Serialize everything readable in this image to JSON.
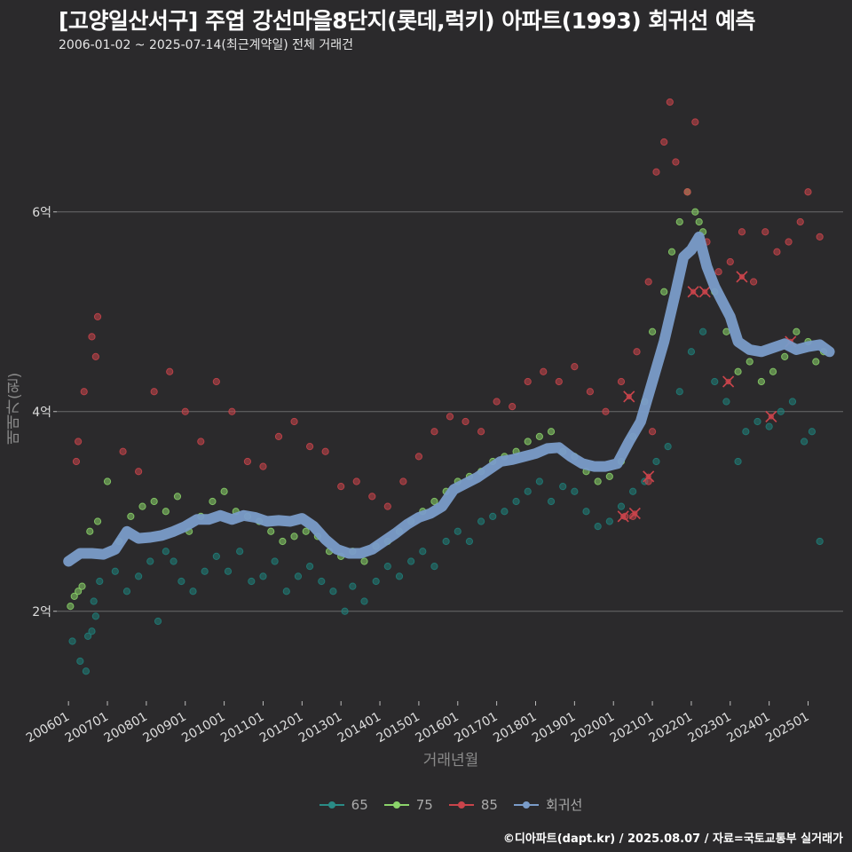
{
  "title": "[고양일산서구] 주엽 강선마을8단지(롯데,럭키) 아파트(1993) 회귀선 예측",
  "subtitle": "2006-01-02 ~ 2025-07-14(최근계약일) 전체 거래건",
  "credit": "©디아파트(dapt.kr) / 2025.08.07 / 자료=국토교통부 실거래가",
  "colors": {
    "background": "#2b2a2c",
    "grid": "#6b6b6b",
    "s65": "#1f7f7a",
    "s75": "#8bd36a",
    "s85": "#c9444b",
    "regression": "#7a9cc9"
  },
  "legend": [
    {
      "label": "65",
      "color": "#2a8b86"
    },
    {
      "label": "75",
      "color": "#8bd36a"
    },
    {
      "label": "85",
      "color": "#c9444b"
    },
    {
      "label": "회귀선",
      "color": "#7a9cc9"
    }
  ],
  "chart_data": {
    "type": "scatter",
    "xlabel": "거래년월",
    "ylabel": "매매가(원)",
    "x_unit": "year",
    "xlim": [
      2005.7,
      2025.9
    ],
    "ylim": [
      1.1,
      7.5
    ],
    "y_unit": "억",
    "yticks": [
      {
        "value": 2,
        "label": "2억"
      },
      {
        "value": 4,
        "label": "4억"
      },
      {
        "value": 6,
        "label": "6억"
      }
    ],
    "xticks": [
      {
        "value": 2006.0,
        "label": "200601"
      },
      {
        "value": 2007.0,
        "label": "200701"
      },
      {
        "value": 2008.0,
        "label": "200801"
      },
      {
        "value": 2009.0,
        "label": "200901"
      },
      {
        "value": 2010.0,
        "label": "201001"
      },
      {
        "value": 2011.0,
        "label": "201101"
      },
      {
        "value": 2012.0,
        "label": "201201"
      },
      {
        "value": 2013.0,
        "label": "201301"
      },
      {
        "value": 2014.0,
        "label": "201401"
      },
      {
        "value": 2015.0,
        "label": "201501"
      },
      {
        "value": 2016.0,
        "label": "201601"
      },
      {
        "value": 2017.0,
        "label": "201701"
      },
      {
        "value": 2018.0,
        "label": "201801"
      },
      {
        "value": 2019.0,
        "label": "201901"
      },
      {
        "value": 2020.0,
        "label": "202001"
      },
      {
        "value": 2021.0,
        "label": "202101"
      },
      {
        "value": 2022.0,
        "label": "202201"
      },
      {
        "value": 2023.0,
        "label": "202301"
      },
      {
        "value": 2024.0,
        "label": "202401"
      },
      {
        "value": 2025.0,
        "label": "202501"
      }
    ],
    "grid": true,
    "legend_position": "bottom",
    "series": [
      {
        "name": "65",
        "points": [
          [
            2006.1,
            1.7
          ],
          [
            2006.3,
            1.5
          ],
          [
            2006.45,
            1.4
          ],
          [
            2006.6,
            1.8
          ],
          [
            2006.7,
            1.95
          ],
          [
            2006.8,
            2.3
          ],
          [
            2006.5,
            1.75
          ],
          [
            2006.65,
            2.1
          ],
          [
            2007.2,
            2.4
          ],
          [
            2007.5,
            2.2
          ],
          [
            2007.8,
            2.35
          ],
          [
            2008.1,
            2.5
          ],
          [
            2008.3,
            1.9
          ],
          [
            2008.5,
            2.6
          ],
          [
            2008.7,
            2.5
          ],
          [
            2008.9,
            2.3
          ],
          [
            2009.2,
            2.2
          ],
          [
            2009.5,
            2.4
          ],
          [
            2009.8,
            2.55
          ],
          [
            2010.1,
            2.4
          ],
          [
            2010.4,
            2.6
          ],
          [
            2010.7,
            2.3
          ],
          [
            2011.0,
            2.35
          ],
          [
            2011.3,
            2.5
          ],
          [
            2011.6,
            2.2
          ],
          [
            2011.9,
            2.35
          ],
          [
            2012.2,
            2.45
          ],
          [
            2012.5,
            2.3
          ],
          [
            2012.8,
            2.2
          ],
          [
            2013.1,
            2.0
          ],
          [
            2013.3,
            2.25
          ],
          [
            2013.6,
            2.1
          ],
          [
            2013.9,
            2.3
          ],
          [
            2014.2,
            2.45
          ],
          [
            2014.5,
            2.35
          ],
          [
            2014.8,
            2.5
          ],
          [
            2015.1,
            2.6
          ],
          [
            2015.4,
            2.45
          ],
          [
            2015.7,
            2.7
          ],
          [
            2016.0,
            2.8
          ],
          [
            2016.3,
            2.7
          ],
          [
            2016.6,
            2.9
          ],
          [
            2016.9,
            2.95
          ],
          [
            2017.2,
            3.0
          ],
          [
            2017.5,
            3.1
          ],
          [
            2017.8,
            3.2
          ],
          [
            2018.1,
            3.3
          ],
          [
            2018.4,
            3.1
          ],
          [
            2018.7,
            3.25
          ],
          [
            2019.0,
            3.2
          ],
          [
            2019.3,
            3.0
          ],
          [
            2019.6,
            2.85
          ],
          [
            2019.9,
            2.9
          ],
          [
            2020.2,
            3.05
          ],
          [
            2020.5,
            3.2
          ],
          [
            2020.8,
            3.3
          ],
          [
            2021.1,
            3.5
          ],
          [
            2021.4,
            3.65
          ],
          [
            2021.7,
            4.2
          ],
          [
            2022.0,
            4.6
          ],
          [
            2022.3,
            4.8
          ],
          [
            2022.6,
            4.3
          ],
          [
            2022.9,
            4.1
          ],
          [
            2023.2,
            3.5
          ],
          [
            2023.4,
            3.8
          ],
          [
            2023.7,
            3.9
          ],
          [
            2024.0,
            3.85
          ],
          [
            2024.3,
            4.0
          ],
          [
            2024.6,
            4.1
          ],
          [
            2024.9,
            3.7
          ],
          [
            2025.1,
            3.8
          ],
          [
            2025.3,
            2.7
          ]
        ]
      },
      {
        "name": "75",
        "points": [
          [
            2006.05,
            2.05
          ],
          [
            2006.15,
            2.15
          ],
          [
            2006.25,
            2.2
          ],
          [
            2006.35,
            2.25
          ],
          [
            2006.55,
            2.8
          ],
          [
            2006.75,
            2.9
          ],
          [
            2007.0,
            3.3
          ],
          [
            2007.3,
            2.7
          ],
          [
            2007.6,
            2.95
          ],
          [
            2007.9,
            3.05
          ],
          [
            2008.2,
            3.1
          ],
          [
            2008.5,
            3.0
          ],
          [
            2008.8,
            3.15
          ],
          [
            2009.1,
            2.8
          ],
          [
            2009.4,
            2.95
          ],
          [
            2009.7,
            3.1
          ],
          [
            2010.0,
            3.2
          ],
          [
            2010.3,
            3.0
          ],
          [
            2010.6,
            2.95
          ],
          [
            2010.9,
            2.9
          ],
          [
            2011.2,
            2.8
          ],
          [
            2011.5,
            2.7
          ],
          [
            2011.8,
            2.75
          ],
          [
            2012.1,
            2.8
          ],
          [
            2012.4,
            2.75
          ],
          [
            2012.7,
            2.6
          ],
          [
            2013.0,
            2.55
          ],
          [
            2013.3,
            2.6
          ],
          [
            2013.6,
            2.5
          ],
          [
            2013.9,
            2.65
          ],
          [
            2014.2,
            2.7
          ],
          [
            2014.5,
            2.8
          ],
          [
            2014.8,
            2.9
          ],
          [
            2015.1,
            3.0
          ],
          [
            2015.4,
            3.1
          ],
          [
            2015.7,
            3.2
          ],
          [
            2016.0,
            3.3
          ],
          [
            2016.3,
            3.35
          ],
          [
            2016.6,
            3.4
          ],
          [
            2016.9,
            3.5
          ],
          [
            2017.2,
            3.55
          ],
          [
            2017.5,
            3.6
          ],
          [
            2017.8,
            3.7
          ],
          [
            2018.1,
            3.75
          ],
          [
            2018.4,
            3.8
          ],
          [
            2018.7,
            3.6
          ],
          [
            2019.0,
            3.55
          ],
          [
            2019.3,
            3.4
          ],
          [
            2019.6,
            3.3
          ],
          [
            2019.9,
            3.35
          ],
          [
            2020.2,
            3.5
          ],
          [
            2020.5,
            3.75
          ],
          [
            2020.8,
            4.1
          ],
          [
            2021.0,
            4.8
          ],
          [
            2021.3,
            5.2
          ],
          [
            2021.5,
            5.6
          ],
          [
            2021.7,
            5.9
          ],
          [
            2021.9,
            6.2
          ],
          [
            2022.1,
            6.0
          ],
          [
            2022.2,
            5.9
          ],
          [
            2022.3,
            5.8
          ],
          [
            2022.6,
            5.2
          ],
          [
            2022.9,
            4.8
          ],
          [
            2023.2,
            4.4
          ],
          [
            2023.5,
            4.5
          ],
          [
            2023.8,
            4.3
          ],
          [
            2024.1,
            4.4
          ],
          [
            2024.4,
            4.55
          ],
          [
            2024.7,
            4.8
          ],
          [
            2025.0,
            4.7
          ],
          [
            2025.2,
            4.5
          ],
          [
            2025.4,
            4.6
          ]
        ]
      },
      {
        "name": "85",
        "points": [
          [
            2006.2,
            3.5
          ],
          [
            2006.25,
            3.7
          ],
          [
            2006.4,
            4.2
          ],
          [
            2006.6,
            4.75
          ],
          [
            2006.75,
            4.95
          ],
          [
            2006.7,
            4.55
          ],
          [
            2007.4,
            3.6
          ],
          [
            2007.8,
            3.4
          ],
          [
            2008.2,
            4.2
          ],
          [
            2008.6,
            4.4
          ],
          [
            2009.0,
            4.0
          ],
          [
            2009.4,
            3.7
          ],
          [
            2009.8,
            4.3
          ],
          [
            2010.2,
            4.0
          ],
          [
            2010.6,
            3.5
          ],
          [
            2011.0,
            3.45
          ],
          [
            2011.4,
            3.75
          ],
          [
            2011.8,
            3.9
          ],
          [
            2012.2,
            3.65
          ],
          [
            2012.6,
            3.6
          ],
          [
            2013.0,
            3.25
          ],
          [
            2013.4,
            3.3
          ],
          [
            2013.8,
            3.15
          ],
          [
            2014.2,
            3.05
          ],
          [
            2014.6,
            3.3
          ],
          [
            2015.0,
            3.55
          ],
          [
            2015.4,
            3.8
          ],
          [
            2015.8,
            3.95
          ],
          [
            2016.2,
            3.9
          ],
          [
            2016.6,
            3.8
          ],
          [
            2017.0,
            4.1
          ],
          [
            2017.4,
            4.05
          ],
          [
            2017.8,
            4.3
          ],
          [
            2018.2,
            4.4
          ],
          [
            2018.6,
            4.3
          ],
          [
            2019.0,
            4.45
          ],
          [
            2019.4,
            4.2
          ],
          [
            2019.8,
            4.0
          ],
          [
            2020.2,
            4.3
          ],
          [
            2020.6,
            4.6
          ],
          [
            2020.9,
            5.3
          ],
          [
            2021.1,
            6.4
          ],
          [
            2021.3,
            6.7
          ],
          [
            2021.45,
            7.1
          ],
          [
            2021.6,
            6.5
          ],
          [
            2021.9,
            6.2
          ],
          [
            2022.1,
            6.9
          ],
          [
            2022.4,
            5.7
          ],
          [
            2022.7,
            5.4
          ],
          [
            2023.0,
            5.5
          ],
          [
            2023.3,
            5.8
          ],
          [
            2023.6,
            5.3
          ],
          [
            2023.9,
            5.8
          ],
          [
            2024.2,
            5.6
          ],
          [
            2024.5,
            5.7
          ],
          [
            2024.8,
            5.9
          ],
          [
            2025.0,
            6.2
          ],
          [
            2025.3,
            5.75
          ],
          [
            2020.3,
            2.95
          ],
          [
            2020.5,
            2.95
          ],
          [
            2020.9,
            3.3
          ],
          [
            2021.0,
            3.8
          ]
        ]
      }
    ],
    "crosses": [
      [
        2020.25,
        2.95
      ],
      [
        2020.55,
        2.98
      ],
      [
        2020.9,
        3.35
      ],
      [
        2020.4,
        4.15
      ],
      [
        2022.05,
        5.2
      ],
      [
        2022.35,
        5.2
      ],
      [
        2022.95,
        4.3
      ],
      [
        2023.3,
        5.35
      ],
      [
        2024.05,
        3.95
      ],
      [
        2024.55,
        4.7
      ]
    ],
    "regression": {
      "name": "회귀선",
      "points": [
        [
          2006.0,
          2.5
        ],
        [
          2006.3,
          2.58
        ],
        [
          2006.6,
          2.58
        ],
        [
          2006.9,
          2.57
        ],
        [
          2007.2,
          2.62
        ],
        [
          2007.5,
          2.8
        ],
        [
          2007.8,
          2.73
        ],
        [
          2008.1,
          2.74
        ],
        [
          2008.4,
          2.76
        ],
        [
          2008.7,
          2.8
        ],
        [
          2009.0,
          2.85
        ],
        [
          2009.3,
          2.92
        ],
        [
          2009.6,
          2.92
        ],
        [
          2009.9,
          2.96
        ],
        [
          2010.2,
          2.92
        ],
        [
          2010.5,
          2.96
        ],
        [
          2010.8,
          2.94
        ],
        [
          2011.1,
          2.9
        ],
        [
          2011.4,
          2.91
        ],
        [
          2011.7,
          2.9
        ],
        [
          2012.0,
          2.93
        ],
        [
          2012.3,
          2.85
        ],
        [
          2012.6,
          2.72
        ],
        [
          2012.9,
          2.62
        ],
        [
          2013.2,
          2.58
        ],
        [
          2013.5,
          2.58
        ],
        [
          2013.8,
          2.62
        ],
        [
          2014.1,
          2.7
        ],
        [
          2014.4,
          2.78
        ],
        [
          2014.7,
          2.87
        ],
        [
          2015.0,
          2.94
        ],
        [
          2015.3,
          2.98
        ],
        [
          2015.6,
          3.05
        ],
        [
          2015.9,
          3.22
        ],
        [
          2016.2,
          3.28
        ],
        [
          2016.5,
          3.34
        ],
        [
          2016.8,
          3.42
        ],
        [
          2017.1,
          3.5
        ],
        [
          2017.4,
          3.52
        ],
        [
          2017.7,
          3.55
        ],
        [
          2018.0,
          3.58
        ],
        [
          2018.3,
          3.63
        ],
        [
          2018.6,
          3.64
        ],
        [
          2018.9,
          3.55
        ],
        [
          2019.2,
          3.48
        ],
        [
          2019.5,
          3.45
        ],
        [
          2019.8,
          3.45
        ],
        [
          2020.1,
          3.48
        ],
        [
          2020.4,
          3.7
        ],
        [
          2020.7,
          3.9
        ],
        [
          2021.0,
          4.3
        ],
        [
          2021.3,
          4.7
        ],
        [
          2021.6,
          5.2
        ],
        [
          2021.8,
          5.55
        ],
        [
          2022.0,
          5.62
        ],
        [
          2022.2,
          5.75
        ],
        [
          2022.4,
          5.45
        ],
        [
          2022.6,
          5.25
        ],
        [
          2022.8,
          5.1
        ],
        [
          2023.0,
          4.95
        ],
        [
          2023.2,
          4.7
        ],
        [
          2023.5,
          4.62
        ],
        [
          2023.8,
          4.6
        ],
        [
          2024.1,
          4.64
        ],
        [
          2024.4,
          4.68
        ],
        [
          2024.7,
          4.62
        ],
        [
          2025.0,
          4.65
        ],
        [
          2025.3,
          4.67
        ],
        [
          2025.55,
          4.6
        ]
      ]
    }
  }
}
